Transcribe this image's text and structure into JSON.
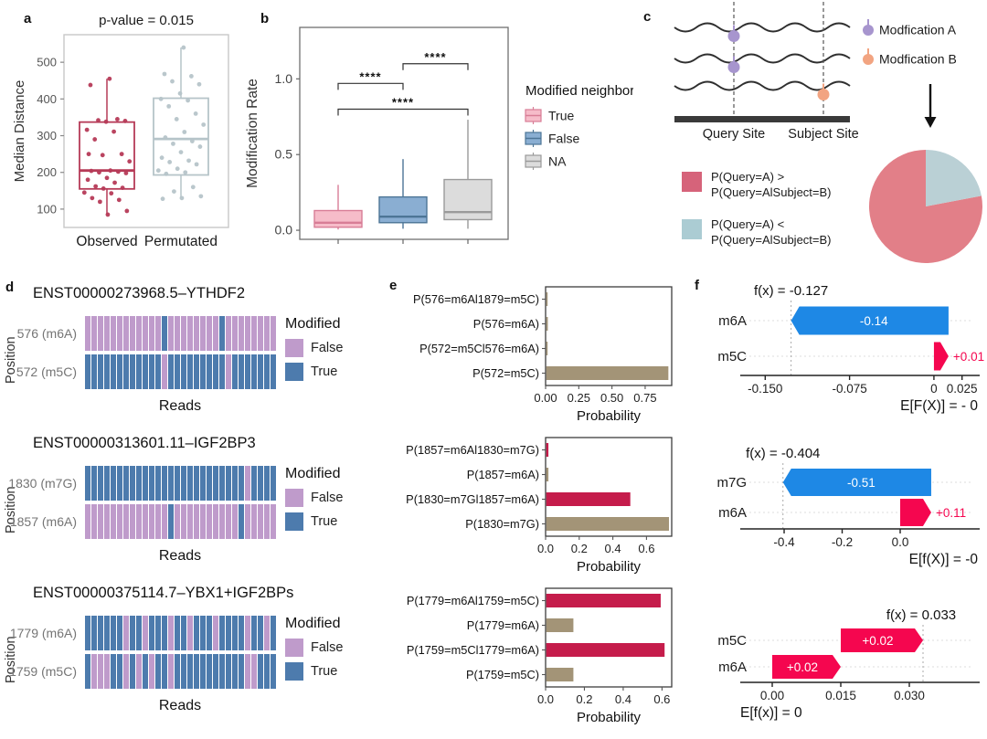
{
  "figure": {
    "panel_labels": [
      "a",
      "b",
      "c",
      "d",
      "e",
      "f"
    ]
  },
  "chart_data": [
    {
      "panel": "a",
      "type": "boxplot",
      "title": "p-value = 0.015",
      "ylabel": "Median Distance",
      "yticks": [
        100,
        200,
        300,
        400,
        500
      ],
      "ylim": [
        50,
        575
      ],
      "categories": [
        "Observed",
        "Permutated"
      ],
      "boxes": [
        {
          "name": "Observed",
          "color": "#b63a57",
          "whisker_low": 85,
          "q1": 155,
          "median": 205,
          "q3": 337,
          "whisker_high": 455
        },
        {
          "name": "Permutated",
          "color": "#b6c4c9",
          "whisker_low": 130,
          "q1": 193,
          "median": 291,
          "q3": 402,
          "whisker_high": 540
        }
      ],
      "points": {
        "Observed": [
          455,
          438,
          345,
          342,
          340,
          338,
          316,
          311,
          290,
          250,
          247,
          230,
          205,
          204,
          202,
          200,
          198,
          185,
          180,
          172,
          162,
          158,
          156,
          145,
          143,
          130,
          125,
          120,
          95,
          85,
          250
        ],
        "Permutated": [
          540,
          468,
          462,
          448,
          440,
          415,
          400,
          396,
          380,
          360,
          345,
          330,
          310,
          295,
          285,
          278,
          270,
          255,
          240,
          232,
          228,
          222,
          210,
          205,
          200,
          196,
          160,
          148,
          135,
          130,
          128
        ]
      }
    },
    {
      "panel": "b",
      "type": "boxplot",
      "ylabel": "Modification Rate",
      "yticks": [
        0.0,
        0.5,
        1.0
      ],
      "ytick_labels": [
        "0.0",
        "0.5",
        "1.0"
      ],
      "ylim": [
        -0.06,
        1.34
      ],
      "legend_title": "Modified neighbor",
      "legend": [
        {
          "label": "True",
          "fill": "#f6bcc9",
          "stroke": "#d87d96"
        },
        {
          "label": "False",
          "fill": "#8aaed2",
          "stroke": "#4d7596"
        },
        {
          "label": "NA",
          "fill": "#dcdcdc",
          "stroke": "#9a9a9a"
        }
      ],
      "boxes": [
        {
          "name": "True",
          "fill": "#f6bcc9",
          "stroke": "#d87d96",
          "whisker_low": 0.005,
          "q1": 0.02,
          "median": 0.05,
          "q3": 0.13,
          "whisker_high": 0.3
        },
        {
          "name": "False",
          "fill": "#8aaed2",
          "stroke": "#4d7596",
          "whisker_low": 0.01,
          "q1": 0.05,
          "median": 0.09,
          "q3": 0.22,
          "whisker_high": 0.47
        },
        {
          "name": "NA",
          "fill": "#dcdcdc",
          "stroke": "#9a9a9a",
          "whisker_low": 0.01,
          "q1": 0.07,
          "median": 0.12,
          "q3": 0.335,
          "whisker_high": 0.73
        }
      ],
      "brackets": [
        {
          "pair": [
            0,
            1
          ],
          "y": 0.97,
          "label": "****"
        },
        {
          "pair": [
            1,
            2
          ],
          "y": 1.1,
          "label": "****"
        },
        {
          "pair": [
            0,
            2
          ],
          "y": 0.8,
          "label": "****"
        }
      ]
    },
    {
      "panel": "c",
      "type": "diagram-pie",
      "site_labels": [
        "Query Site",
        "Subject Site"
      ],
      "mod_legend": [
        {
          "label": "Modfication A",
          "color": "#a795ce"
        },
        {
          "label": "Modfication B",
          "color": "#f2a481"
        }
      ],
      "pie": {
        "values": [
          78,
          22
        ],
        "colors": [
          "#e27f88",
          "#bad0d5"
        ],
        "start": "top"
      },
      "pie_legend": [
        {
          "lines": [
            "P(Query=A) >",
            "P(Query=AlSubject=B)"
          ],
          "color": "#d6637a"
        },
        {
          "lines": [
            "P(Query=A) <",
            "P(Query=AlSubject=B)"
          ],
          "color": "#abccd3"
        }
      ]
    },
    {
      "panel": "d",
      "type": "heatmap",
      "ylabel": "Position",
      "xlabel": "Reads",
      "legend_title": "Modified",
      "legend": [
        {
          "label": "False",
          "color": "#bf9bcb"
        },
        {
          "label": "True",
          "color": "#4d7bad"
        }
      ],
      "plots": [
        {
          "title": "ENST00000273968.5–YTHDF2",
          "rows": [
            {
              "label": "576 (m6A)",
              "pattern": "FFFFFFFFFFFFTFFFFFFFFTFFFFFFFF"
            },
            {
              "label": "572 (m5C)",
              "pattern": "TTTTTTTTTTTTFTTTTTTTTTFTTTTTTT"
            }
          ]
        },
        {
          "title": "ENST00000313601.11–IGF2BP3",
          "rows": [
            {
              "label": "1830 (m7G)",
              "pattern": "TTTTTTTTTTTTTTTTTTTTTTTTTFTTTT"
            },
            {
              "label": "1857 (m6A)",
              "pattern": "FFFFFFFFFFFFFTFFFFFFFFFFTFFFFF"
            }
          ]
        },
        {
          "title": "ENST00000375114.7–YBX1+IGF2BPs",
          "rows": [
            {
              "label": "1779 (m6A)",
              "pattern": "TTTTTTFTTFTTTFTTFTTTFTTTTFTTFT"
            },
            {
              "label": "1759 (m5C)",
              "pattern": "TFFFTTFTFTFTTFTTTTTTTTTTTFFTTT"
            }
          ]
        }
      ]
    },
    {
      "panel": "e",
      "type": "bar",
      "xlabel": "Probability",
      "palette": {
        "tan": "#a39477",
        "crimson": "#c51c4b"
      },
      "plots": [
        {
          "categories": [
            "P(576=m6Al1879=m5C)",
            "P(576=m6A)",
            "P(572=m5Cl576=m6A)",
            "P(572=m5C)"
          ],
          "values": [
            0.006,
            0.012,
            0.006,
            0.92
          ],
          "bar_colors": [
            "tan",
            "tan",
            "tan",
            "tan"
          ],
          "xticks": [
            0,
            0.25,
            0.5,
            0.75
          ],
          "xtick_labels": [
            "0.00",
            "0.25",
            "0.50",
            "0.75"
          ],
          "xmax": 0.95
        },
        {
          "categories": [
            "P(1857=m6Al1830=m7G)",
            "P(1857=m6A)",
            "P(1830=m7Gl1857=m6A)",
            "P(1830=m7G)"
          ],
          "values": [
            0.013,
            0.013,
            0.5,
            0.73
          ],
          "bar_colors": [
            "crimson",
            "tan",
            "crimson",
            "tan"
          ],
          "xticks": [
            0,
            0.2,
            0.4,
            0.6
          ],
          "xtick_labels": [
            "0.0",
            "0.2",
            "0.4",
            "0.6"
          ],
          "xmax": 0.75
        },
        {
          "categories": [
            "P(1779=m6Al1759=m5C)",
            "P(1779=m6A)",
            "P(1759=m5Cl1779=m6A)",
            "P(1759=m5C)"
          ],
          "values": [
            0.59,
            0.14,
            0.61,
            0.14
          ],
          "bar_colors": [
            "crimson",
            "tan",
            "crimson",
            "tan"
          ],
          "xticks": [
            0,
            0.2,
            0.4,
            0.6
          ],
          "xtick_labels": [
            "0.0",
            "0.2",
            "0.4",
            "0.6"
          ],
          "xmax": 0.65
        }
      ]
    },
    {
      "panel": "f",
      "type": "force",
      "palette": {
        "pos": "#f5064f",
        "neg": "#1e88e5"
      },
      "plots": [
        {
          "fx_label": "f(x) = -0.127",
          "fx": -0.127,
          "xlim": [
            -0.16,
            0.035
          ],
          "xticks": [
            -0.15,
            -0.075,
            0,
            0.025
          ],
          "xtick_labels": [
            "-0.150",
            "-0.075",
            "0",
            "0.025"
          ],
          "xlabel": "E[F(X)] = - 0",
          "xlabel_side": "right",
          "rows": [
            {
              "label": "m6A",
              "from": 0.013,
              "to": -0.127,
              "value": "-0.14",
              "color": "neg",
              "text_inside": true
            },
            {
              "label": "m5C",
              "from": 0,
              "to": 0.013,
              "value": "+0.01",
              "color": "pos",
              "text_inside": false
            }
          ]
        },
        {
          "fx_label": "f(x) = -0.404",
          "fx": -0.404,
          "xlim": [
            -0.504,
            0.252
          ],
          "xticks": [
            -0.4,
            -0.2,
            0
          ],
          "xtick_labels": [
            "-0.4",
            "-0.2",
            "0.0"
          ],
          "xlabel": "E[f(X)] = -0",
          "xlabel_side": "right",
          "rows": [
            {
              "label": "m7G",
              "from": 0.107,
              "to": -0.404,
              "value": "-0.51",
              "color": "neg",
              "text_inside": true
            },
            {
              "label": "m6A",
              "from": 0,
              "to": 0.107,
              "value": "+0.11",
              "color": "pos",
              "text_inside": false
            }
          ]
        },
        {
          "fx_label": "f(x) = 0.033",
          "fx": 0.033,
          "xlim": [
            -0.004,
            0.044
          ],
          "xticks": [
            0,
            0.015,
            0.03
          ],
          "xtick_labels": [
            "0.00",
            "0.015",
            "0.030"
          ],
          "xlabel": "E[f(x)] = 0",
          "xlabel_side": "left",
          "rows": [
            {
              "label": "m5C",
              "from": 0.015,
              "to": 0.033,
              "value": "+0.02",
              "color": "pos",
              "text_inside": true
            },
            {
              "label": "m6A",
              "from": 0,
              "to": 0.015,
              "value": "+0.02",
              "color": "pos",
              "text_inside": true
            }
          ]
        }
      ]
    }
  ]
}
